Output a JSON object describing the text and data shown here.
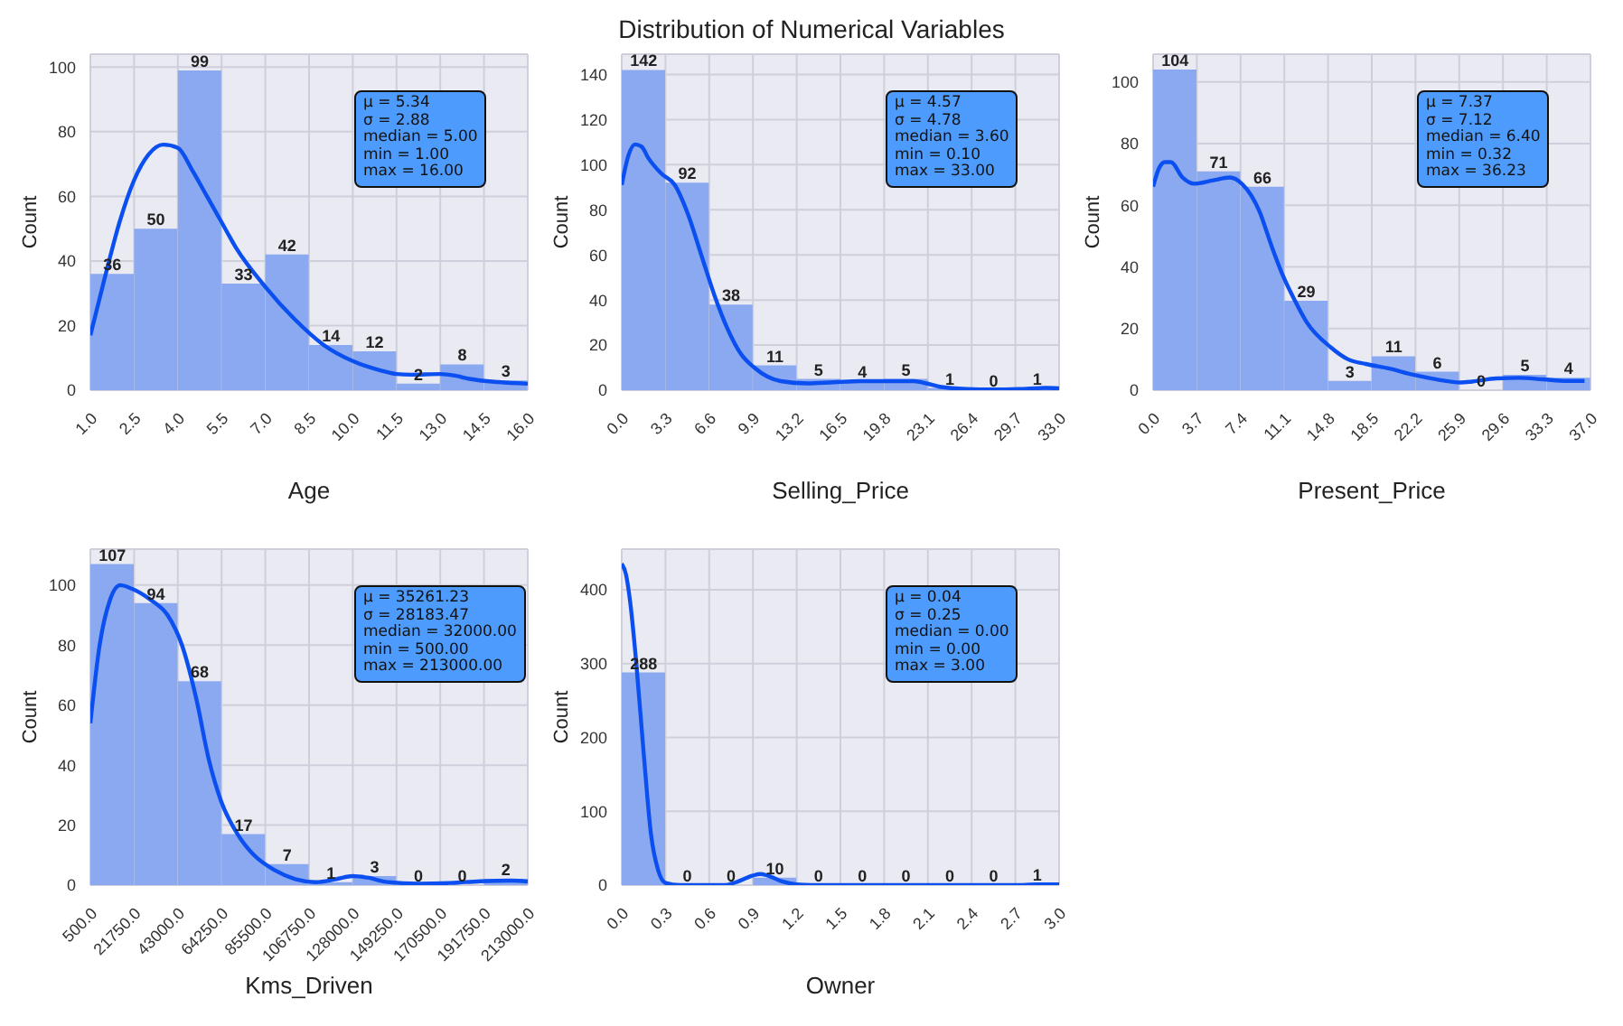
{
  "chart_data": [
    {
      "type": "histogram",
      "xlabel": "Age",
      "ylabel": "Count",
      "bins": [
        1,
        2.5,
        4,
        5.5,
        7,
        8.5,
        10,
        11.5,
        13,
        14.5,
        16
      ],
      "values": [
        36,
        50,
        99,
        33,
        42,
        14,
        12,
        2,
        8,
        3
      ],
      "value_labels": [
        "36",
        "50",
        "99",
        "33",
        "42",
        "14",
        "12",
        "2",
        "8",
        "3"
      ],
      "color": "#8aa9f0",
      "grid": true,
      "xlim": [
        1,
        16
      ],
      "xticks": [
        {
          "value": 1,
          "label": "1.0"
        },
        2.5,
        {
          "value": 4,
          "label": "4.0"
        },
        5.5,
        {
          "value": 7,
          "label": "7.0"
        },
        8.5,
        {
          "value": 10,
          "label": "10.0"
        },
        11.5,
        {
          "value": 13,
          "label": "13.0"
        },
        14.5,
        {
          "value": 16,
          "label": "16.0"
        }
      ],
      "ylim": [
        0,
        104
      ],
      "yticks": [
        0,
        20,
        40,
        60,
        80,
        100
      ],
      "annotations": [
        "μ = 5.34",
        "σ = 2.88",
        "median = 5.00",
        "min = 1.00",
        "max = 16.00"
      ],
      "series": [
        {
          "type": "line",
          "color": "#0b4ff0",
          "x": [
            1,
            1.5,
            2,
            2.5,
            3,
            3.5,
            4,
            4.5,
            5,
            5.5,
            6,
            7,
            8,
            9,
            10,
            11,
            11.5,
            12,
            13,
            13.5,
            14,
            15,
            16
          ],
          "values": [
            17,
            35,
            52,
            65,
            73,
            76,
            75,
            68,
            60,
            52,
            44,
            32,
            22,
            14,
            9,
            6,
            5,
            4.8,
            5,
            4.5,
            3.5,
            2.5,
            2
          ]
        }
      ]
    },
    {
      "type": "histogram",
      "title": "Distribution of Numerical Variables",
      "xlabel": "Selling_Price",
      "ylabel": "Count",
      "bins": [
        0,
        3.3,
        6.6,
        9.9,
        13.2,
        16.5,
        19.8,
        23.1,
        26.4,
        29.7,
        33
      ],
      "values": [
        142,
        92,
        38,
        11,
        5,
        4,
        5,
        1,
        0,
        1
      ],
      "value_labels": [
        "142",
        "92",
        "38",
        "11",
        "5",
        "4",
        "5",
        "1",
        "0",
        "1"
      ],
      "color": "#8aa9f0",
      "grid": true,
      "xlim": [
        0,
        33
      ],
      "xticks": [
        {
          "value": 0,
          "label": "0.0"
        },
        3.3,
        6.6,
        9.9,
        13.2,
        16.5,
        19.8,
        23.1,
        26.4,
        29.7,
        {
          "value": 33,
          "label": "33.0"
        }
      ],
      "ylim": [
        0,
        149
      ],
      "yticks": [
        0,
        20,
        40,
        60,
        80,
        100,
        120,
        140
      ],
      "annotations": [
        "μ = 4.57",
        "σ = 4.78",
        "median = 3.60",
        "min = 0.10",
        "max = 33.00"
      ],
      "series": [
        {
          "type": "line",
          "color": "#0b4ff0",
          "x": [
            0,
            0.5,
            1,
            1.5,
            2,
            3,
            4,
            5,
            6,
            7,
            8,
            9,
            10,
            11,
            12,
            14,
            16,
            18,
            20,
            22,
            23,
            24,
            26,
            28,
            30,
            32,
            33
          ],
          "values": [
            91,
            104,
            109,
            108,
            103,
            96,
            91,
            78,
            60,
            42,
            27,
            16,
            10,
            6,
            4,
            3,
            3.5,
            4,
            4,
            4,
            3,
            1.5,
            0.5,
            0.3,
            0.5,
            1,
            0.8
          ]
        }
      ]
    },
    {
      "type": "histogram",
      "xlabel": "Present_Price",
      "ylabel": "Count",
      "bins": [
        0,
        3.7,
        7.4,
        11.1,
        14.8,
        18.5,
        22.2,
        25.9,
        29.6,
        33.3,
        37
      ],
      "values": [
        104,
        71,
        66,
        29,
        3,
        11,
        6,
        0,
        5,
        4
      ],
      "value_labels": [
        "104",
        "71",
        "66",
        "29",
        "3",
        "11",
        "6",
        "0",
        "5",
        "4"
      ],
      "color": "#8aa9f0",
      "grid": true,
      "xlim": [
        0,
        37
      ],
      "xticks": [
        {
          "value": 0,
          "label": "0.0"
        },
        3.7,
        7.4,
        11.1,
        14.8,
        18.5,
        22.2,
        25.9,
        29.6,
        33.3,
        {
          "value": 37,
          "label": "37.0"
        }
      ],
      "ylim": [
        0,
        109
      ],
      "yticks": [
        0,
        20,
        40,
        60,
        80,
        100
      ],
      "annotations": [
        "μ = 7.37",
        "σ = 7.12",
        "median = 6.40",
        "min = 0.32",
        "max = 36.23"
      ],
      "series": [
        {
          "type": "line",
          "color": "#0b4ff0",
          "x": [
            0,
            0.5,
            1,
            1.5,
            2.5,
            3.5,
            5,
            6.5,
            7.5,
            9,
            10,
            11,
            12,
            13,
            15,
            16.5,
            18,
            20,
            22,
            24,
            26,
            27,
            29,
            31,
            33,
            35,
            36.5
          ],
          "values": [
            66,
            72,
            74,
            74,
            69,
            67,
            68,
            69,
            67,
            58,
            47,
            37,
            29,
            22,
            14,
            10,
            8.5,
            7,
            5,
            3.5,
            2.5,
            2.8,
            3.8,
            4,
            3.5,
            3,
            3
          ]
        }
      ]
    },
    {
      "type": "histogram",
      "xlabel": "Kms_Driven",
      "ylabel": "Count",
      "bins": [
        500,
        21750,
        43000,
        64250,
        85500,
        106750,
        128000,
        149250,
        170500,
        191750,
        213000
      ],
      "values": [
        107,
        94,
        68,
        17,
        7,
        1,
        3,
        0,
        0,
        2
      ],
      "value_labels": [
        "107",
        "94",
        "68",
        "17",
        "7",
        "1",
        "3",
        "0",
        "0",
        "2"
      ],
      "color": "#8aa9f0",
      "grid": true,
      "xlim": [
        500,
        213000
      ],
      "xticks": [
        {
          "value": 500,
          "label": "500.0"
        },
        {
          "value": 21750,
          "label": "21750.0"
        },
        {
          "value": 43000,
          "label": "43000.0"
        },
        {
          "value": 64250,
          "label": "64250.0"
        },
        {
          "value": 85500,
          "label": "85500.0"
        },
        {
          "value": 106750,
          "label": "106750.0"
        },
        {
          "value": 128000,
          "label": "128000.0"
        },
        {
          "value": 149250,
          "label": "149250.0"
        },
        {
          "value": 170500,
          "label": "170500.0"
        },
        {
          "value": 191750,
          "label": "191750.0"
        },
        {
          "value": 213000,
          "label": "213000.0"
        }
      ],
      "ylim": [
        0,
        112
      ],
      "yticks": [
        0,
        20,
        40,
        60,
        80,
        100
      ],
      "annotations": [
        "μ = 35261.23",
        "σ = 28183.47",
        "median = 32000.00",
        "min = 500.00",
        "max = 213000.00"
      ],
      "series": [
        {
          "type": "line",
          "color": "#0b4ff0",
          "x": [
            500,
            5000,
            10000,
            15000,
            20000,
            30000,
            38000,
            45000,
            52000,
            58000,
            64000,
            72000,
            80000,
            90000,
            100000,
            110000,
            120000,
            128000,
            135000,
            145000,
            160000,
            175000,
            190000,
            205000,
            213000
          ],
          "values": [
            54,
            80,
            95,
            100,
            99,
            95,
            90,
            80,
            62,
            42,
            28,
            17,
            10,
            5,
            2,
            1,
            2,
            3,
            2.5,
            1,
            0.5,
            0.7,
            1.3,
            1.5,
            1.2
          ]
        }
      ]
    },
    {
      "type": "histogram",
      "xlabel": "Owner",
      "ylabel": "Count",
      "bins": [
        0,
        0.3,
        0.6,
        0.9,
        1.2,
        1.5,
        1.8,
        2.1,
        2.4,
        2.7,
        3
      ],
      "values": [
        288,
        0,
        0,
        10,
        0,
        0,
        0,
        0,
        0,
        1
      ],
      "value_labels": [
        "288",
        "0",
        "0",
        "10",
        "0",
        "0",
        "0",
        "0",
        "0",
        "1"
      ],
      "color": "#8aa9f0",
      "grid": true,
      "xlim": [
        0,
        3
      ],
      "xticks": [
        {
          "value": 0,
          "label": "0.0"
        },
        0.3,
        0.6,
        0.9,
        1.2,
        1.5,
        1.8,
        2.1,
        2.4,
        2.7,
        {
          "value": 3,
          "label": "3.0"
        }
      ],
      "ylim": [
        0,
        455
      ],
      "yticks": [
        0,
        100,
        200,
        300,
        400
      ],
      "annotations": [
        "μ = 0.04",
        "σ = 0.25",
        "median = 0.00",
        "min = 0.00",
        "max = 3.00"
      ],
      "series": [
        {
          "type": "line",
          "color": "#0b4ff0",
          "x": [
            0,
            0.03,
            0.06,
            0.1,
            0.15,
            0.2,
            0.25,
            0.3,
            0.4,
            0.7,
            0.8,
            0.9,
            0.95,
            1,
            1.1,
            1.2,
            1.3,
            2.7,
            2.85,
            3
          ],
          "values": [
            435,
            420,
            380,
            300,
            180,
            70,
            20,
            3,
            0,
            0,
            5,
            13,
            15,
            13,
            5,
            1,
            0,
            0,
            1,
            1
          ]
        }
      ]
    }
  ]
}
